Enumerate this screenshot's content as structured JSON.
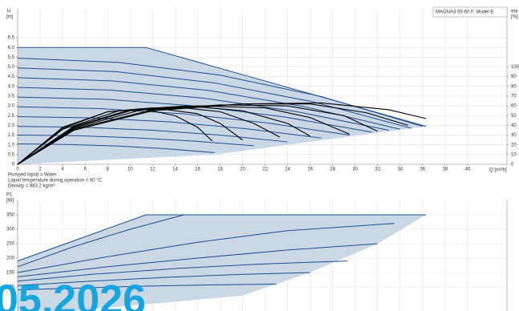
{
  "chart_data": [
    {
      "type": "line",
      "title": "MAGNA3 65-60 F, Model E",
      "ylabel": "H",
      "yunit": "[m]",
      "y2label": "eta",
      "y2unit": "[%]",
      "xlabel": "Q [m³/h]",
      "xlim": [
        0,
        43.5
      ],
      "ylim": [
        0,
        8
      ],
      "y2lim": [
        0,
        160
      ],
      "grid": true,
      "fill": "#cad8e6",
      "xticks": [
        0,
        2,
        4,
        6,
        8,
        10,
        12,
        14,
        16,
        18,
        20,
        22,
        24,
        26,
        28,
        30,
        32,
        34,
        36,
        38,
        40
      ],
      "yticks": [
        0,
        0.5,
        {
          "value": 1,
          "label": "1.0"
        },
        1.5,
        {
          "value": 2,
          "label": "2.0"
        },
        2.5,
        {
          "value": 3,
          "label": "3.0"
        },
        3.5,
        {
          "value": 4,
          "label": "4.0"
        },
        4.5,
        {
          "value": 5,
          "label": "5.0"
        },
        5.5,
        {
          "value": 6,
          "label": "6.0"
        },
        6.5
      ],
      "y2ticks": [
        0,
        10,
        20,
        30,
        40,
        50,
        60,
        70,
        80,
        90,
        100
      ],
      "area": {
        "x": [
          0,
          11.4,
          36.3,
          17.5,
          0
        ],
        "values": [
          6,
          6,
          1.95,
          0.5,
          0
        ]
      },
      "series": [
        {
          "color": "#1f4e8c",
          "x": [
            0,
            11.4,
            36.3
          ],
          "values": [
            6,
            6,
            1.95
          ]
        },
        {
          "color": "#1f4e8c",
          "x": [
            0,
            9,
            18,
            27,
            36
          ],
          "values": [
            5.45,
            5.23,
            4.58,
            3.48,
            1.95
          ]
        },
        {
          "color": "#1f4e8c",
          "x": [
            0,
            8.75,
            17.5,
            26.25,
            35
          ],
          "values": [
            4.95,
            4.76,
            4.18,
            3.21,
            1.85
          ]
        },
        {
          "color": "#1f4e8c",
          "x": [
            0,
            8.5,
            17,
            25.5,
            34
          ],
          "values": [
            4.45,
            4.28,
            3.79,
            2.96,
            1.8
          ]
        },
        {
          "color": "#1f4e8c",
          "x": [
            0,
            8.25,
            16.5,
            24.75,
            33
          ],
          "values": [
            3.95,
            3.81,
            3.4,
            2.71,
            1.75
          ]
        },
        {
          "color": "#1f4e8c",
          "x": [
            0,
            7.88,
            15.75,
            23.63,
            31.5
          ],
          "values": [
            3.45,
            3.34,
            3,
            2.44,
            1.65
          ]
        },
        {
          "color": "#1f4e8c",
          "x": [
            0,
            7.38,
            14.75,
            22.13,
            29.5
          ],
          "values": [
            2.95,
            2.86,
            2.59,
            2.13,
            1.5
          ]
        },
        {
          "color": "#1f4e8c",
          "x": [
            0,
            6.75,
            13.5,
            20.25,
            27
          ],
          "values": [
            2.45,
            2.38,
            2.18,
            1.83,
            1.35
          ]
        },
        {
          "color": "#1f4e8c",
          "x": [
            0,
            6,
            12,
            18,
            24
          ],
          "values": [
            1.95,
            1.9,
            1.75,
            1.5,
            1.15
          ]
        },
        {
          "color": "#1f4e8c",
          "x": [
            0,
            5.25,
            10.5,
            15.75,
            21
          ],
          "values": [
            1.5,
            1.47,
            1.36,
            1.19,
            0.95
          ]
        },
        {
          "color": "#1f4e8c",
          "x": [
            0,
            4.38,
            8.75,
            13.13,
            17.5
          ],
          "values": [
            1.05,
            1.02,
            0.94,
            0.8,
            0.6
          ]
        },
        {
          "color": "#000000",
          "axis": "y2",
          "x": [
            0,
            5,
            12,
            20,
            27,
            33,
            36.3
          ],
          "values": [
            0,
            35,
            55,
            62,
            63,
            56,
            47
          ]
        },
        {
          "color": "#000000",
          "axis": "y2",
          "x": [
            0,
            5,
            12,
            20,
            26,
            31,
            34.7
          ],
          "values": [
            0,
            36,
            56,
            62,
            62,
            53,
            40
          ]
        },
        {
          "color": "#000000",
          "axis": "y2",
          "x": [
            0,
            5,
            11,
            18,
            24,
            29,
            32
          ],
          "values": [
            0,
            37,
            56,
            61,
            60,
            50,
            34
          ]
        },
        {
          "color": "#000000",
          "axis": "y2",
          "x": [
            0,
            5,
            10,
            16,
            22,
            26,
            29.5
          ],
          "values": [
            0,
            38,
            55,
            60,
            58,
            48,
            31
          ]
        },
        {
          "color": "#000000",
          "axis": "y2",
          "x": [
            0,
            5,
            10,
            15,
            20,
            24,
            26
          ],
          "values": [
            0,
            39,
            56,
            60,
            55,
            42,
            29
          ]
        },
        {
          "color": "#000000",
          "axis": "y2",
          "x": [
            0,
            4,
            9,
            14,
            18,
            21,
            23.3
          ],
          "values": [
            0,
            36,
            55,
            59,
            54,
            42,
            28
          ]
        },
        {
          "color": "#000000",
          "axis": "y2",
          "x": [
            0,
            4,
            8,
            12,
            16,
            18,
            20
          ],
          "values": [
            0,
            37,
            54,
            58,
            52,
            42,
            25
          ]
        },
        {
          "color": "#000000",
          "axis": "y2",
          "x": [
            0,
            4,
            8,
            11,
            14,
            16,
            17.3
          ],
          "values": [
            0,
            38,
            54,
            57,
            50,
            38,
            24
          ]
        }
      ]
    },
    {
      "type": "line",
      "ylabel": "P1",
      "yunit": "[W]",
      "xlim": [
        0,
        43.5
      ],
      "ylim": [
        0,
        400
      ],
      "grid": true,
      "fill": "#cad8e6",
      "yticks": [
        100,
        150,
        200,
        250,
        300,
        350
      ],
      "area": {
        "x": [
          0,
          11.4,
          36.3,
          32,
          26,
          20,
          0
        ],
        "values": [
          190,
          350,
          350,
          250,
          150,
          70,
          0
        ]
      },
      "series": [
        {
          "color": "#1f4e8c",
          "x": [
            0,
            11.4,
            36.3
          ],
          "values": [
            190,
            350,
            350
          ]
        },
        {
          "color": "#1f4e8c",
          "x": [
            0,
            5,
            10,
            14.8
          ],
          "values": [
            170,
            240,
            300,
            350
          ]
        },
        {
          "color": "#1f4e8c",
          "x": [
            0,
            8,
            16,
            24,
            33.5
          ],
          "values": [
            150,
            205,
            255,
            295,
            320
          ]
        },
        {
          "color": "#1f4e8c",
          "x": [
            0,
            8,
            16,
            24,
            32
          ],
          "values": [
            135,
            170,
            200,
            228,
            250
          ]
        },
        {
          "color": "#1f4e8c",
          "x": [
            0,
            7,
            14.5,
            22,
            29.3
          ],
          "values": [
            120,
            145,
            165,
            180,
            190
          ]
        },
        {
          "color": "#1f4e8c",
          "x": [
            0,
            6.5,
            13,
            19.5,
            26
          ],
          "values": [
            105,
            120,
            133,
            143,
            150
          ]
        },
        {
          "color": "#1f4e8c",
          "x": [
            0,
            6,
            11.5,
            17,
            23
          ],
          "values": [
            90,
            97,
            103,
            107,
            110
          ]
        }
      ]
    }
  ],
  "notes": [
    "Pumped liquid = Water",
    "Liquid temperature during operation = 60 °C",
    "Density = 983.2 kg/m³"
  ],
  "watermark": "05.2026"
}
